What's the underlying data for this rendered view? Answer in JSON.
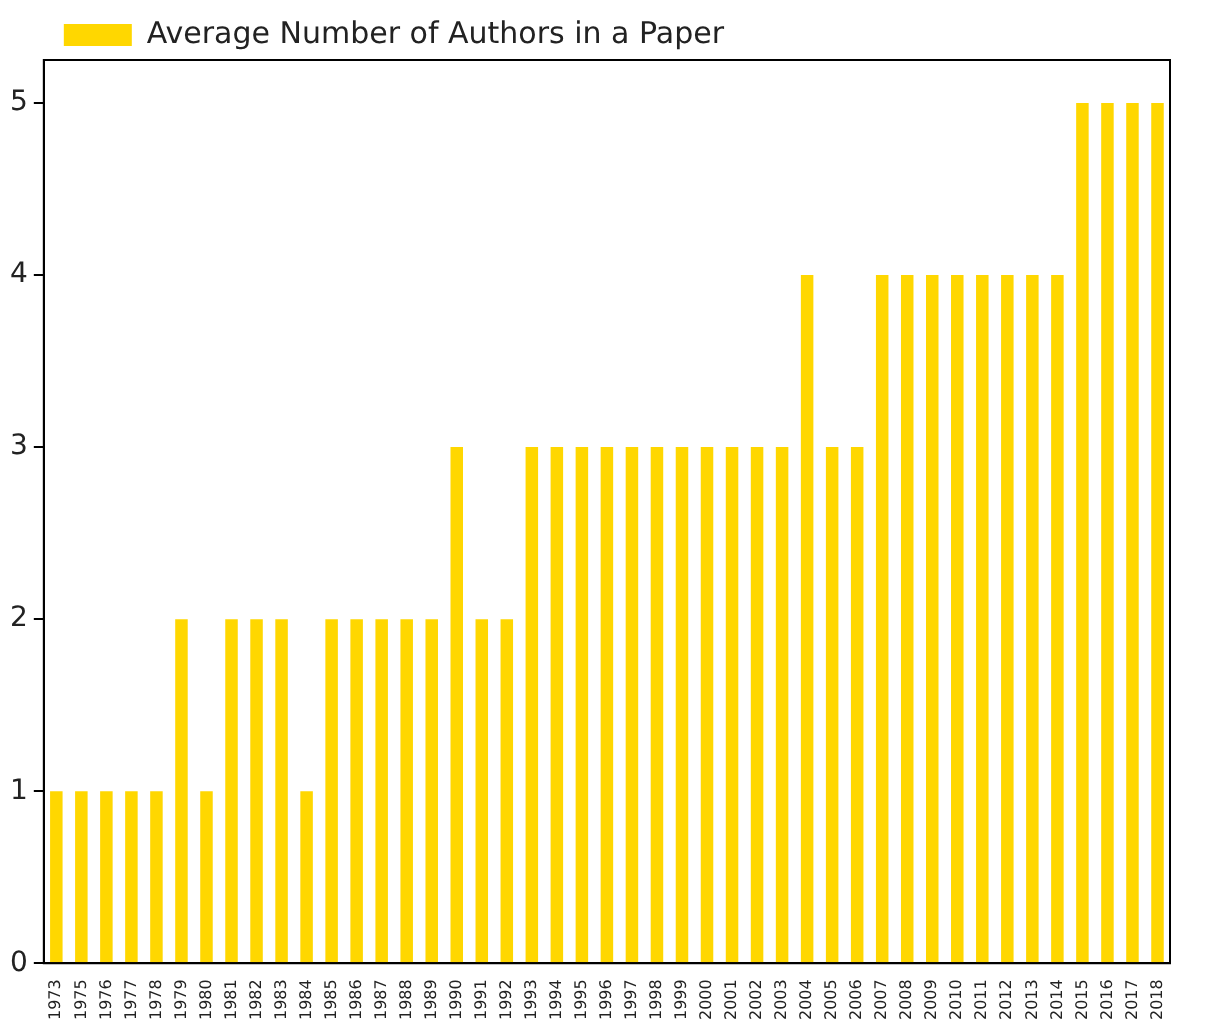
{
  "chart_data": {
    "type": "bar",
    "categories": [
      "1973",
      "1975",
      "1976",
      "1977",
      "1978",
      "1979",
      "1980",
      "1981",
      "1982",
      "1983",
      "1984",
      "1985",
      "1986",
      "1987",
      "1988",
      "1989",
      "1990",
      "1991",
      "1992",
      "1993",
      "1994",
      "1995",
      "1996",
      "1997",
      "1998",
      "1999",
      "2000",
      "2001",
      "2002",
      "2003",
      "2004",
      "2005",
      "2006",
      "2007",
      "2008",
      "2009",
      "2010",
      "2011",
      "2012",
      "2013",
      "2014",
      "2015",
      "2016",
      "2017",
      "2018"
    ],
    "series": [
      {
        "name": "Average Number of Authors in a Paper",
        "color": "#ffd700",
        "values": [
          1,
          1,
          1,
          1,
          1,
          2,
          1,
          2,
          2,
          2,
          1,
          2,
          2,
          2,
          2,
          2,
          3,
          2,
          2,
          3,
          3,
          3,
          3,
          3,
          3,
          3,
          3,
          3,
          3,
          3,
          4,
          3,
          3,
          4,
          4,
          4,
          4,
          4,
          4,
          4,
          4,
          5,
          5,
          5,
          5
        ]
      }
    ],
    "ylim": [
      0,
      5.25
    ],
    "yticks": [
      0,
      1,
      2,
      3,
      4,
      5
    ],
    "legend": "top left",
    "grid": false
  }
}
